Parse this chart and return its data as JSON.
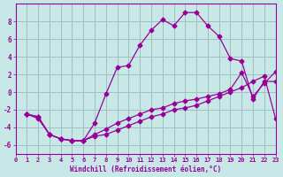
{
  "xlabel": "Windchill (Refroidissement éolien,°C)",
  "bg_color": "#c8e8e8",
  "grid_color": "#a0c0c0",
  "line_color": "#990099",
  "xlim": [
    0,
    23
  ],
  "ylim": [
    -7,
    10
  ],
  "yticks": [
    -6,
    -4,
    -2,
    0,
    2,
    4,
    6,
    8
  ],
  "xticks": [
    0,
    1,
    2,
    3,
    4,
    5,
    6,
    7,
    8,
    9,
    10,
    11,
    12,
    13,
    14,
    15,
    16,
    17,
    18,
    19,
    20,
    21,
    22,
    23
  ],
  "line1_x": [
    1,
    2,
    3,
    4,
    5,
    6,
    7,
    8,
    9,
    10,
    11,
    12,
    13,
    14,
    15,
    16,
    17,
    18,
    19,
    20,
    21,
    22,
    23
  ],
  "line1_y": [
    -2.5,
    -3.0,
    -4.8,
    -5.3,
    -5.5,
    -5.5,
    -3.5,
    -0.2,
    2.8,
    3.0,
    5.3,
    7.0,
    8.2,
    7.5,
    9.0,
    9.0,
    7.5,
    6.3,
    3.8,
    3.5,
    -0.8,
    1.2,
    1.2
  ],
  "line2_x": [
    1,
    2,
    3,
    4,
    5,
    6,
    7,
    8,
    9,
    10,
    11,
    12,
    13,
    14,
    15,
    16,
    17,
    18,
    19,
    20,
    21,
    22,
    23
  ],
  "line2_y": [
    -2.5,
    -2.8,
    -4.8,
    -5.3,
    -5.5,
    -5.5,
    -4.8,
    -4.2,
    -3.5,
    -3.0,
    -2.5,
    -2.0,
    -1.8,
    -1.3,
    -1.0,
    -0.8,
    -0.5,
    -0.2,
    0.3,
    2.2,
    -0.5,
    1.0,
    2.3
  ],
  "line3_x": [
    1,
    2,
    3,
    4,
    5,
    6,
    7,
    8,
    9,
    10,
    11,
    12,
    13,
    14,
    15,
    16,
    17,
    18,
    19,
    20,
    21,
    22,
    23
  ],
  "line3_y": [
    -2.5,
    -2.8,
    -4.8,
    -5.3,
    -5.5,
    -5.5,
    -5.0,
    -4.8,
    -4.3,
    -3.8,
    -3.3,
    -2.8,
    -2.5,
    -2.0,
    -1.8,
    -1.5,
    -1.0,
    -0.5,
    0.0,
    0.5,
    1.2,
    1.8,
    -3.0
  ]
}
